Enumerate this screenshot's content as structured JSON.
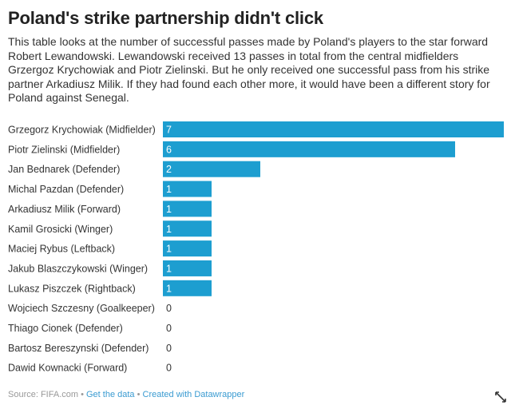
{
  "title": "Poland's strike partnership didn't click",
  "description": "This table looks at the number of successful passes made by Poland's players to the star forward Robert Lewandowski. Lewandowski received 13 passes in total from the central midfielders Grzergoz Krychowiak and Piotr Zielinski. But he only received one successful pass from his strike partner Arkadiusz Milik. If they had found each other more, it would have been a different story for Poland against Senegal.",
  "footer": {
    "source": "Source: FIFA.com",
    "sep1": " • ",
    "get_data": "Get the data",
    "sep2": " • ",
    "created_with": "Created with Datawrapper"
  },
  "colors": {
    "bar": "#1d9ed0",
    "label_in_bar": "#ffffff",
    "label_outside": "#333333"
  },
  "icons": {
    "expand": "expand-arrows-icon"
  },
  "chart_data": {
    "type": "bar",
    "orientation": "horizontal",
    "categories": [
      "Grzegorz Krychowiak (Midfielder)",
      "Piotr Zielinski (Midfielder)",
      "Jan Bednarek (Defender)",
      "Michal Pazdan (Defender)",
      "Arkadiusz Milik (Forward)",
      "Kamil Grosicki (Winger)",
      "Maciej Rybus (Leftback)",
      "Jakub Blaszczykowski (Winger)",
      "Lukasz Piszczek (Rightback)",
      "Wojciech Szczesny (Goalkeeper)",
      "Thiago Cionek (Defender)",
      "Bartosz Bereszynski (Defender)",
      "Dawid Kownacki (Forward)"
    ],
    "values": [
      7,
      6,
      2,
      1,
      1,
      1,
      1,
      1,
      1,
      0,
      0,
      0,
      0
    ],
    "xlim": [
      0,
      7
    ],
    "grid": false,
    "legend": "none"
  }
}
